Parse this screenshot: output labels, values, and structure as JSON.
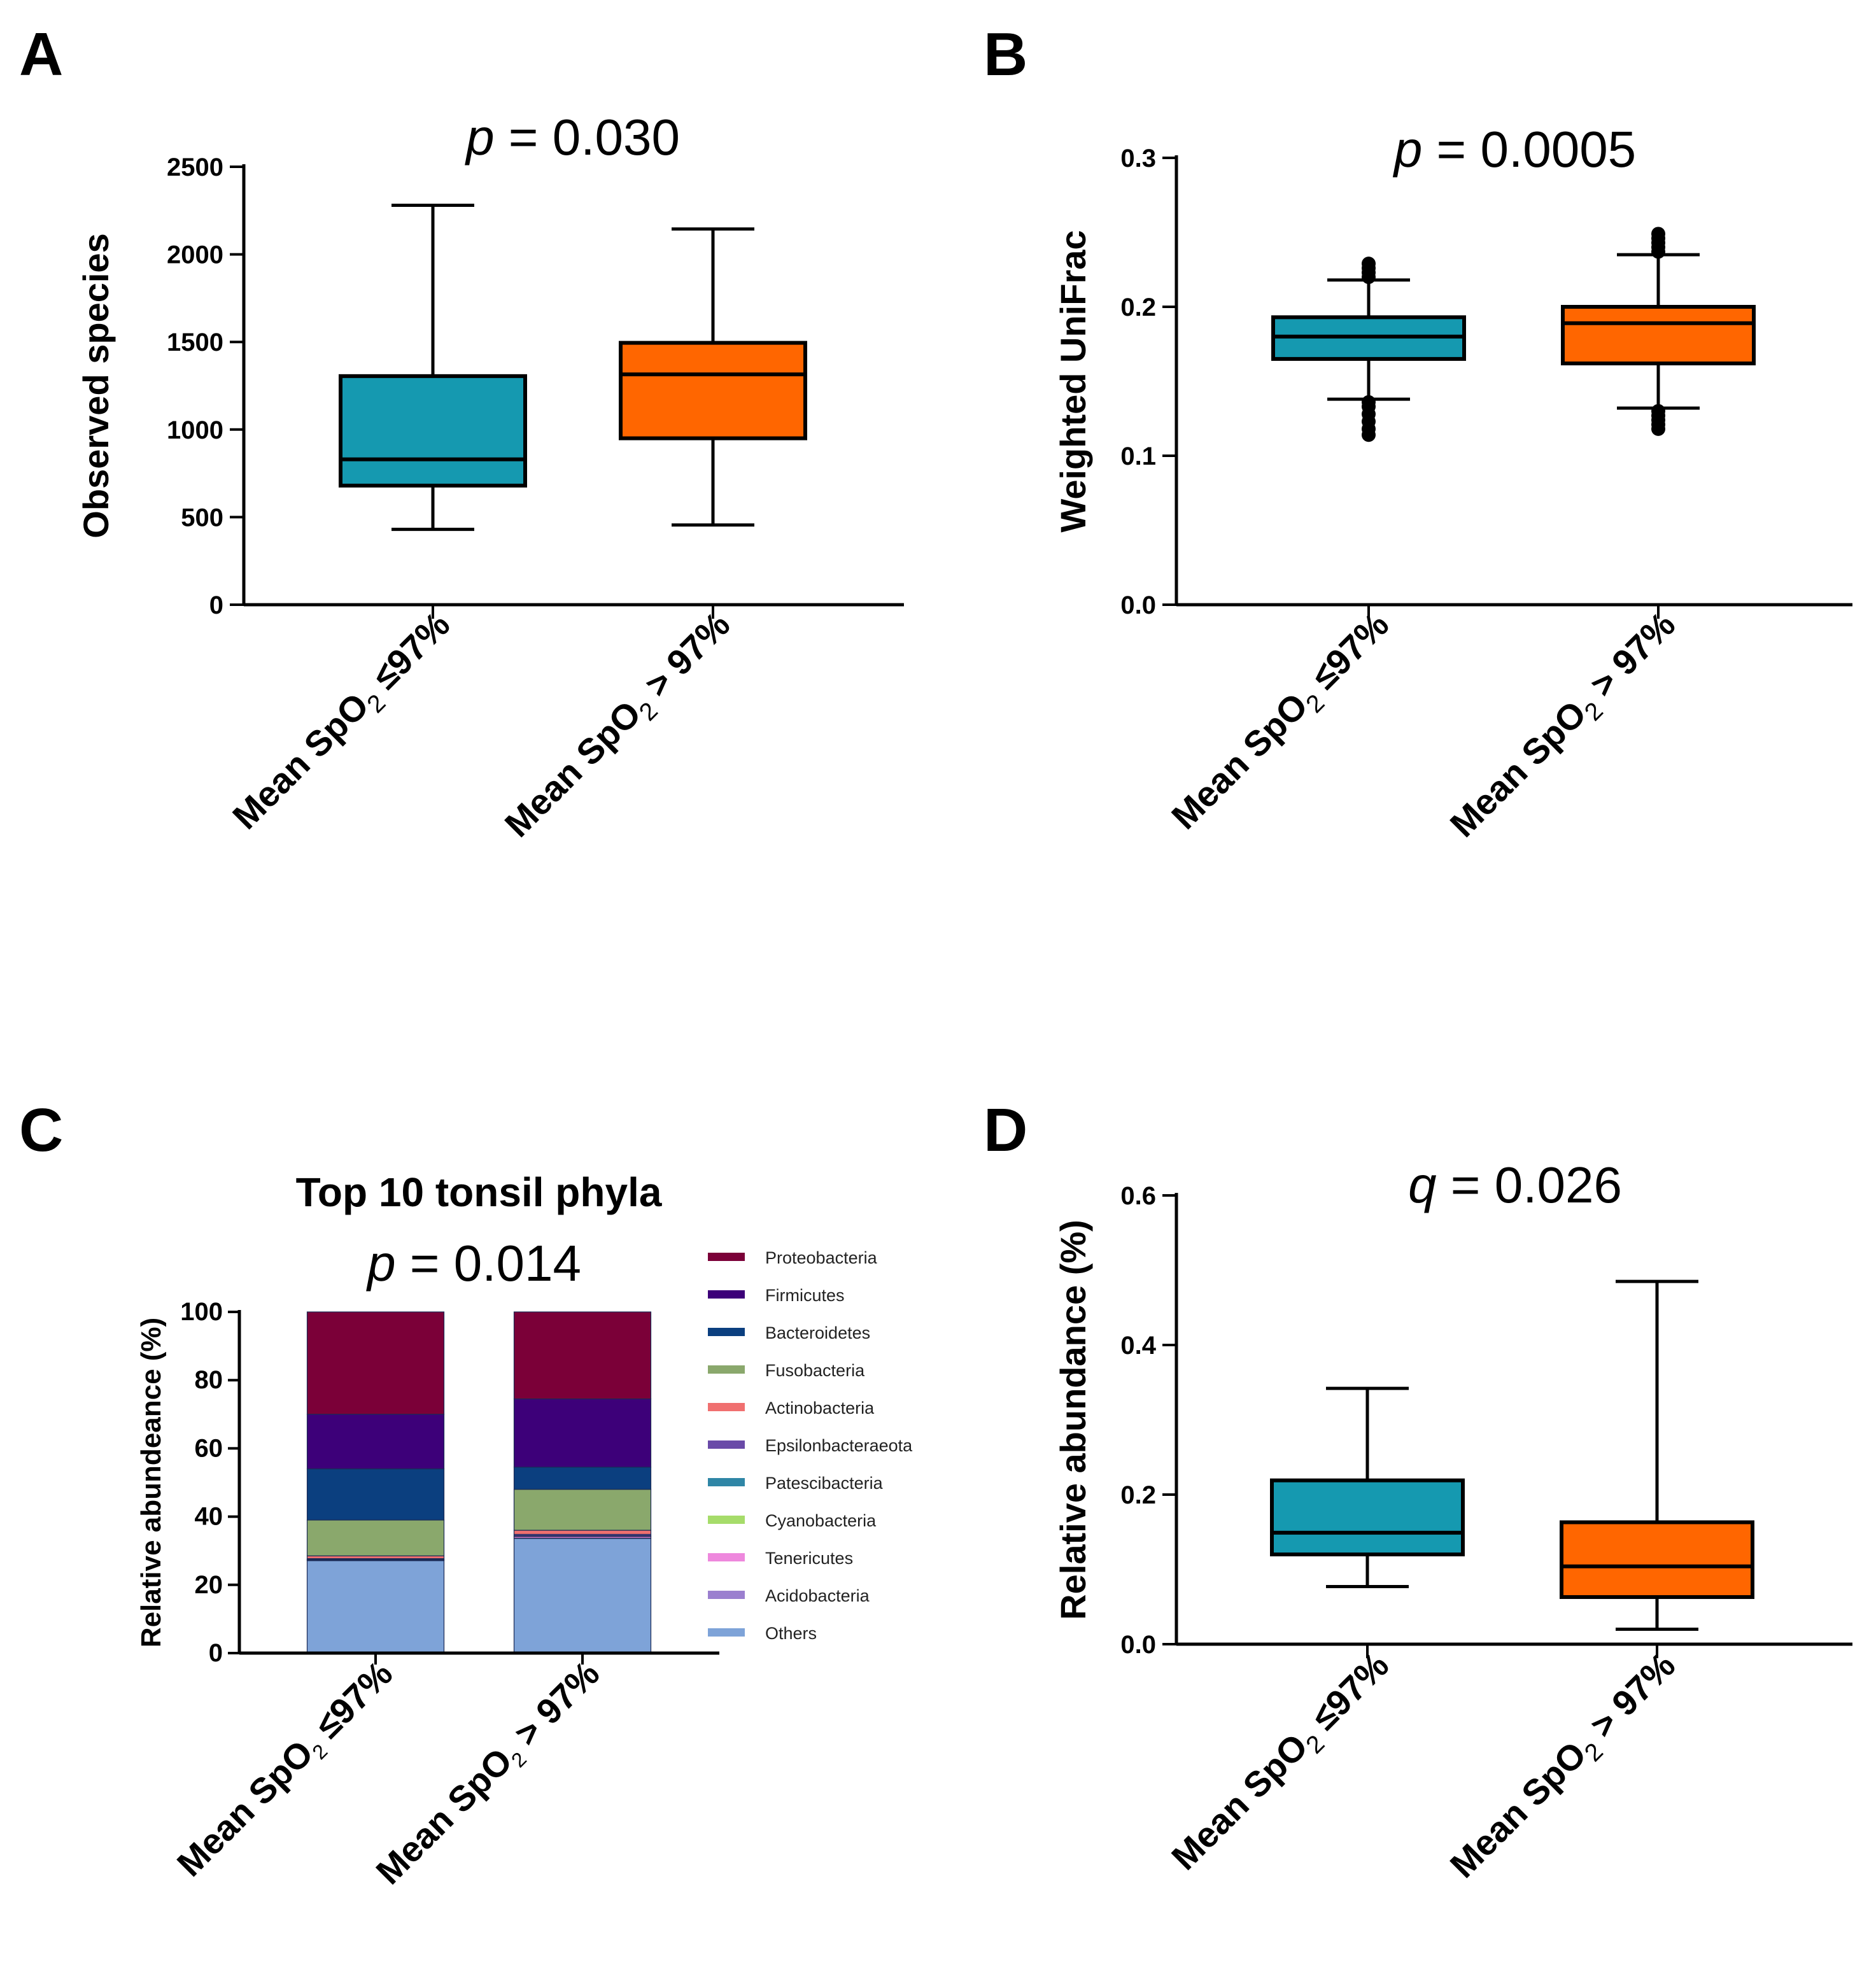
{
  "colors": {
    "low_group": "#1599b0",
    "high_group": "#ff6600",
    "axis": "#000000"
  },
  "panels": {
    "A": {
      "letter": "A"
    },
    "B": {
      "letter": "B"
    },
    "C": {
      "letter": "C"
    },
    "D": {
      "letter": "D"
    }
  },
  "chart_data": [
    {
      "id": "A",
      "type": "box",
      "p_label": "p",
      "p_value": " = 0.030",
      "ylabel": "Observed species",
      "ylim": [
        0,
        2500
      ],
      "yticks": [
        "0",
        "500",
        "1000",
        "1500",
        "2000",
        "2500"
      ],
      "categories": [
        {
          "base": "Mean SpO",
          "sub": "2",
          "rel": " ≤97%"
        },
        {
          "base": "Mean SpO",
          "sub": "2",
          "rel": " > 97%"
        }
      ],
      "boxes": [
        {
          "min": 430,
          "q1": 680,
          "median": 830,
          "q3": 1305,
          "max": 2280,
          "outliers": []
        },
        {
          "min": 455,
          "q1": 950,
          "median": 1315,
          "q3": 1495,
          "max": 2145,
          "outliers": []
        }
      ]
    },
    {
      "id": "B",
      "type": "box",
      "p_label": "p",
      "p_value": " = 0.0005",
      "ylabel": "Weighted UniFrac",
      "ylim": [
        0,
        0.3
      ],
      "yticks": [
        "0.0",
        "0.1",
        "0.2",
        "0.3"
      ],
      "categories": [
        {
          "base": "Mean SpO",
          "sub": "2",
          "rel": " ≤97%"
        },
        {
          "base": "Mean SpO",
          "sub": "2",
          "rel": " > 97%"
        }
      ],
      "boxes": [
        {
          "min": 0.138,
          "q1": 0.165,
          "median": 0.18,
          "q3": 0.193,
          "max": 0.218,
          "outliers": [
            0.114,
            0.118,
            0.123,
            0.128,
            0.133,
            0.136,
            0.22,
            0.223,
            0.226,
            0.229
          ]
        },
        {
          "min": 0.132,
          "q1": 0.162,
          "median": 0.189,
          "q3": 0.2,
          "max": 0.235,
          "outliers": [
            0.118,
            0.121,
            0.124,
            0.127,
            0.13,
            0.237,
            0.24,
            0.243,
            0.246,
            0.249
          ]
        }
      ]
    },
    {
      "id": "C",
      "type": "stacked-bar",
      "title": "Top 10 tonsil phyla",
      "p_label": "p",
      "p_value": " = 0.014",
      "ylabel": "Relative abundeance (%)",
      "ylim": [
        0,
        100
      ],
      "yticks": [
        "0",
        "20",
        "40",
        "60",
        "80",
        "100"
      ],
      "categories": [
        {
          "base": "Mean SpO",
          "sub": "2",
          "rel": " ≤97%"
        },
        {
          "base": "Mean SpO",
          "sub": "2",
          "rel": " > 97%"
        }
      ],
      "series": [
        {
          "name": "Proteobacteria",
          "color": "#7b0038",
          "values": [
            30.0,
            25.5
          ]
        },
        {
          "name": "Firmicutes",
          "color": "#3d0079",
          "values": [
            16.0,
            20.0
          ]
        },
        {
          "name": "Bacteroidetes",
          "color": "#0b3f7f",
          "values": [
            15.0,
            6.5
          ]
        },
        {
          "name": "Fusobacteria",
          "color": "#8aa86c",
          "values": [
            10.5,
            12.0
          ]
        },
        {
          "name": "Actinobacteria",
          "color": "#f07070",
          "values": [
            0.8,
            1.2
          ]
        },
        {
          "name": "Epsilonbacteraeota",
          "color": "#6a4aa8",
          "values": [
            0.2,
            0.4
          ]
        },
        {
          "name": "Patescibacteria",
          "color": "#2f86a6",
          "values": [
            0.1,
            0.1
          ]
        },
        {
          "name": "Cyanobacteria",
          "color": "#a6dc6a",
          "values": [
            0.1,
            0.1
          ]
        },
        {
          "name": "Tenericutes",
          "color": "#ee88dd",
          "values": [
            0.1,
            0.5
          ]
        },
        {
          "name": "Acidobacteria",
          "color": "#9b7fcf",
          "values": [
            0.1,
            0.1
          ]
        },
        {
          "name": "Others",
          "color": "#7ea3d8",
          "values": [
            27.1,
            33.6
          ]
        }
      ]
    },
    {
      "id": "D",
      "type": "box",
      "p_label": "q",
      "p_value": " = 0.026",
      "ylabel": "Relative abundance (%)",
      "ylim": [
        0,
        0.6
      ],
      "yticks": [
        "0.0",
        "0.2",
        "0.4",
        "0.6"
      ],
      "categories": [
        {
          "base": "Mean SpO",
          "sub": "2",
          "rel": " ≤97%"
        },
        {
          "base": "Mean SpO",
          "sub": "2",
          "rel": " > 97%"
        }
      ],
      "boxes": [
        {
          "min": 0.077,
          "q1": 0.12,
          "median": 0.149,
          "q3": 0.219,
          "max": 0.342,
          "outliers": []
        },
        {
          "min": 0.02,
          "q1": 0.063,
          "median": 0.104,
          "q3": 0.163,
          "max": 0.485,
          "outliers": []
        }
      ]
    }
  ]
}
